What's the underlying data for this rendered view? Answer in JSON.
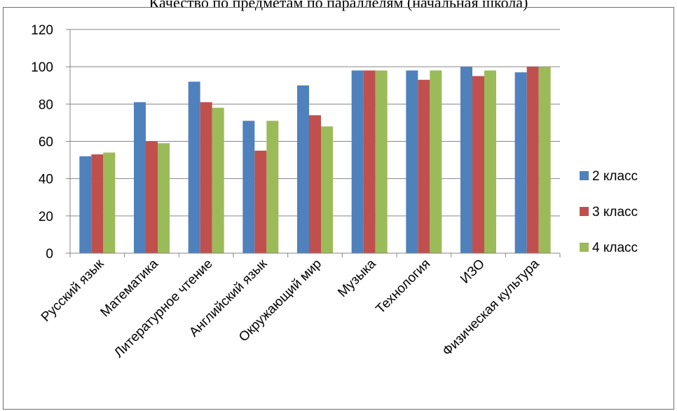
{
  "chart_data": {
    "type": "bar",
    "title": "Качество по предметам по параллелям (начальная школа)",
    "categories": [
      "Русский язык",
      "Математика",
      "Литературное чтение",
      "Английский язык",
      "Окружающий мир",
      "Музыка",
      "Технология",
      "ИЗО",
      "Физическая культура"
    ],
    "series": [
      {
        "name": "2 класс",
        "color": "#4f81bd",
        "values": [
          52,
          81,
          92,
          71,
          90,
          98,
          98,
          100,
          97
        ]
      },
      {
        "name": "3 класс",
        "color": "#c0504d",
        "values": [
          53,
          60,
          81,
          55,
          74,
          98,
          93,
          95,
          100
        ]
      },
      {
        "name": "4 класс",
        "color": "#9bbb59",
        "values": [
          54,
          59,
          78,
          71,
          68,
          98,
          98,
          98,
          100
        ]
      }
    ],
    "ylim": [
      0,
      120
    ],
    "yticks": [
      0,
      20,
      40,
      60,
      80,
      100,
      120
    ],
    "grid": true,
    "legend": "right"
  }
}
